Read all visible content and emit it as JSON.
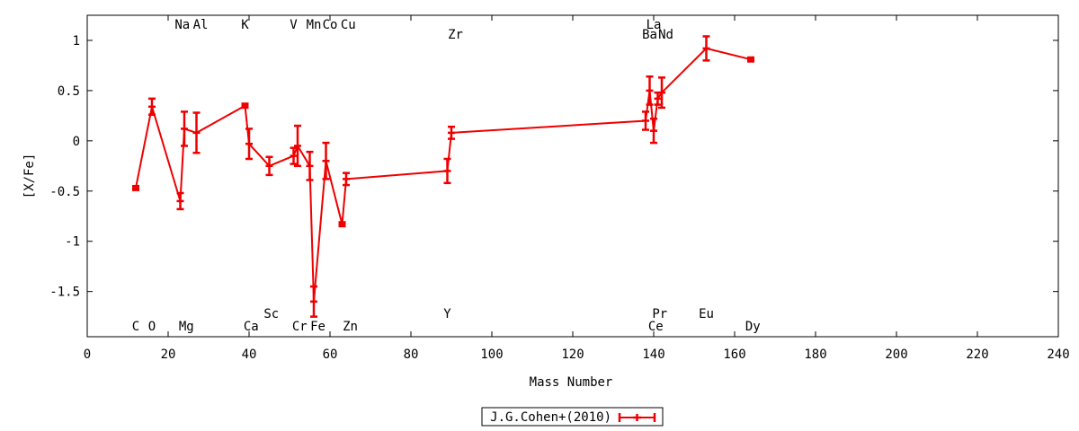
{
  "chart_data": {
    "type": "line",
    "title": "",
    "xlabel": "Mass Number",
    "ylabel": "[X/Fe]",
    "xlim": [
      0,
      240
    ],
    "ylim": [
      -1.95,
      1.25
    ],
    "x_ticks": [
      0,
      20,
      40,
      60,
      80,
      100,
      120,
      140,
      160,
      180,
      200,
      220,
      240
    ],
    "y_ticks": [
      -1.5,
      -1,
      -0.5,
      0,
      0.5,
      1
    ],
    "x_tick_labels": [
      "0",
      "20",
      "40",
      "60",
      "80",
      "100",
      "120",
      "140",
      "160",
      "180",
      "200",
      "220",
      "240"
    ],
    "y_tick_labels": [
      "-1.5",
      "-1",
      "-0.5",
      "0",
      "0.5",
      "1"
    ],
    "grid": false,
    "legend_position": "bottom-center",
    "series": [
      {
        "name": "J.G.Cohen+(2010)",
        "color": "#ee0000",
        "points": [
          {
            "x": 12,
            "y": -0.47,
            "err": 0.02
          },
          {
            "x": 16,
            "y": 0.34,
            "err": 0.08
          },
          {
            "x": 23,
            "y": -0.6,
            "err": 0.08
          },
          {
            "x": 24,
            "y": 0.12,
            "err": 0.17
          },
          {
            "x": 27,
            "y": 0.08,
            "err": 0.2
          },
          {
            "x": 39,
            "y": 0.35,
            "err": 0.02
          },
          {
            "x": 40,
            "y": -0.03,
            "err": 0.15
          },
          {
            "x": 45,
            "y": -0.25,
            "err": 0.09
          },
          {
            "x": 51,
            "y": -0.15,
            "err": 0.08
          },
          {
            "x": 52,
            "y": -0.05,
            "err": 0.2
          },
          {
            "x": 55,
            "y": -0.25,
            "err": 0.14
          },
          {
            "x": 56,
            "y": -1.6,
            "err": 0.15
          },
          {
            "x": 59,
            "y": -0.2,
            "err": 0.18
          },
          {
            "x": 63,
            "y": -0.83,
            "err": 0.02
          },
          {
            "x": 64,
            "y": -0.38,
            "err": 0.06
          },
          {
            "x": 89,
            "y": -0.3,
            "err": 0.12
          },
          {
            "x": 90,
            "y": 0.08,
            "err": 0.06
          },
          {
            "x": 138,
            "y": 0.2,
            "err": 0.09
          },
          {
            "x": 139,
            "y": 0.5,
            "err": 0.14
          },
          {
            "x": 140,
            "y": 0.1,
            "err": 0.12
          },
          {
            "x": 141,
            "y": 0.42,
            "err": 0.06
          },
          {
            "x": 142,
            "y": 0.48,
            "err": 0.15
          },
          {
            "x": 153,
            "y": 0.92,
            "err": 0.12
          },
          {
            "x": 164,
            "y": 0.81,
            "err": 0.02
          }
        ]
      }
    ],
    "element_labels": [
      {
        "text": "C",
        "x": 12,
        "row": "bottom"
      },
      {
        "text": "O",
        "x": 16,
        "row": "bottom"
      },
      {
        "text": "Mg",
        "x": 24.5,
        "row": "bottom"
      },
      {
        "text": "Ca",
        "x": 40.5,
        "row": "bottom"
      },
      {
        "text": "Cr",
        "x": 52.5,
        "row": "bottom"
      },
      {
        "text": "Fe",
        "x": 57,
        "row": "bottom"
      },
      {
        "text": "Zn",
        "x": 65,
        "row": "bottom"
      },
      {
        "text": "Ce",
        "x": 140.5,
        "row": "bottom"
      },
      {
        "text": "Dy",
        "x": 164.5,
        "row": "bottom"
      },
      {
        "text": "Sc",
        "x": 45.5,
        "row": "lower"
      },
      {
        "text": "Y",
        "x": 89,
        "row": "lower"
      },
      {
        "text": "Pr",
        "x": 141.5,
        "row": "lower"
      },
      {
        "text": "Eu",
        "x": 153,
        "row": "lower"
      },
      {
        "text": "Na",
        "x": 23.5,
        "row": "top"
      },
      {
        "text": "Al",
        "x": 28,
        "row": "top"
      },
      {
        "text": "K",
        "x": 39,
        "row": "top"
      },
      {
        "text": "V",
        "x": 51,
        "row": "top"
      },
      {
        "text": "Mn",
        "x": 56,
        "row": "top"
      },
      {
        "text": "Co",
        "x": 60,
        "row": "top"
      },
      {
        "text": "Cu",
        "x": 64.5,
        "row": "top"
      },
      {
        "text": "La",
        "x": 140,
        "row": "top"
      },
      {
        "text": "Zr",
        "x": 91,
        "row": "upper"
      },
      {
        "text": "Ba",
        "x": 139,
        "row": "upper"
      },
      {
        "text": "Nd",
        "x": 143,
        "row": "upper"
      }
    ]
  }
}
